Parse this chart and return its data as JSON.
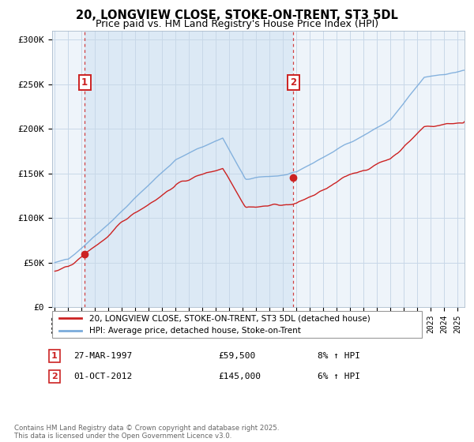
{
  "title": "20, LONGVIEW CLOSE, STOKE-ON-TRENT, ST3 5DL",
  "subtitle": "Price paid vs. HM Land Registry's House Price Index (HPI)",
  "ylim": [
    0,
    310000
  ],
  "yticks": [
    0,
    50000,
    100000,
    150000,
    200000,
    250000,
    300000
  ],
  "ytick_labels": [
    "£0",
    "£50K",
    "£100K",
    "£150K",
    "£200K",
    "£250K",
    "£300K"
  ],
  "x_start_year": 1995,
  "x_end_year": 2025.5,
  "sale1_year": 1997.22,
  "sale1_price": 59500,
  "sale1_label": "1",
  "sale1_date": "27-MAR-1997",
  "sale1_pct": "8% ↑ HPI",
  "sale2_year": 2012.75,
  "sale2_price": 145000,
  "sale2_label": "2",
  "sale2_date": "01-OCT-2012",
  "sale2_pct": "6% ↑ HPI",
  "hpi_color": "#7aabdb",
  "price_color": "#cc2222",
  "shade_color": "#dce9f5",
  "grid_color": "#c8d8e8",
  "plot_bg": "#eef4fa",
  "legend1": "20, LONGVIEW CLOSE, STOKE-ON-TRENT, ST3 5DL (detached house)",
  "legend2": "HPI: Average price, detached house, Stoke-on-Trent",
  "footnote": "Contains HM Land Registry data © Crown copyright and database right 2025.\nThis data is licensed under the Open Government Licence v3.0.",
  "marker_size": 6
}
